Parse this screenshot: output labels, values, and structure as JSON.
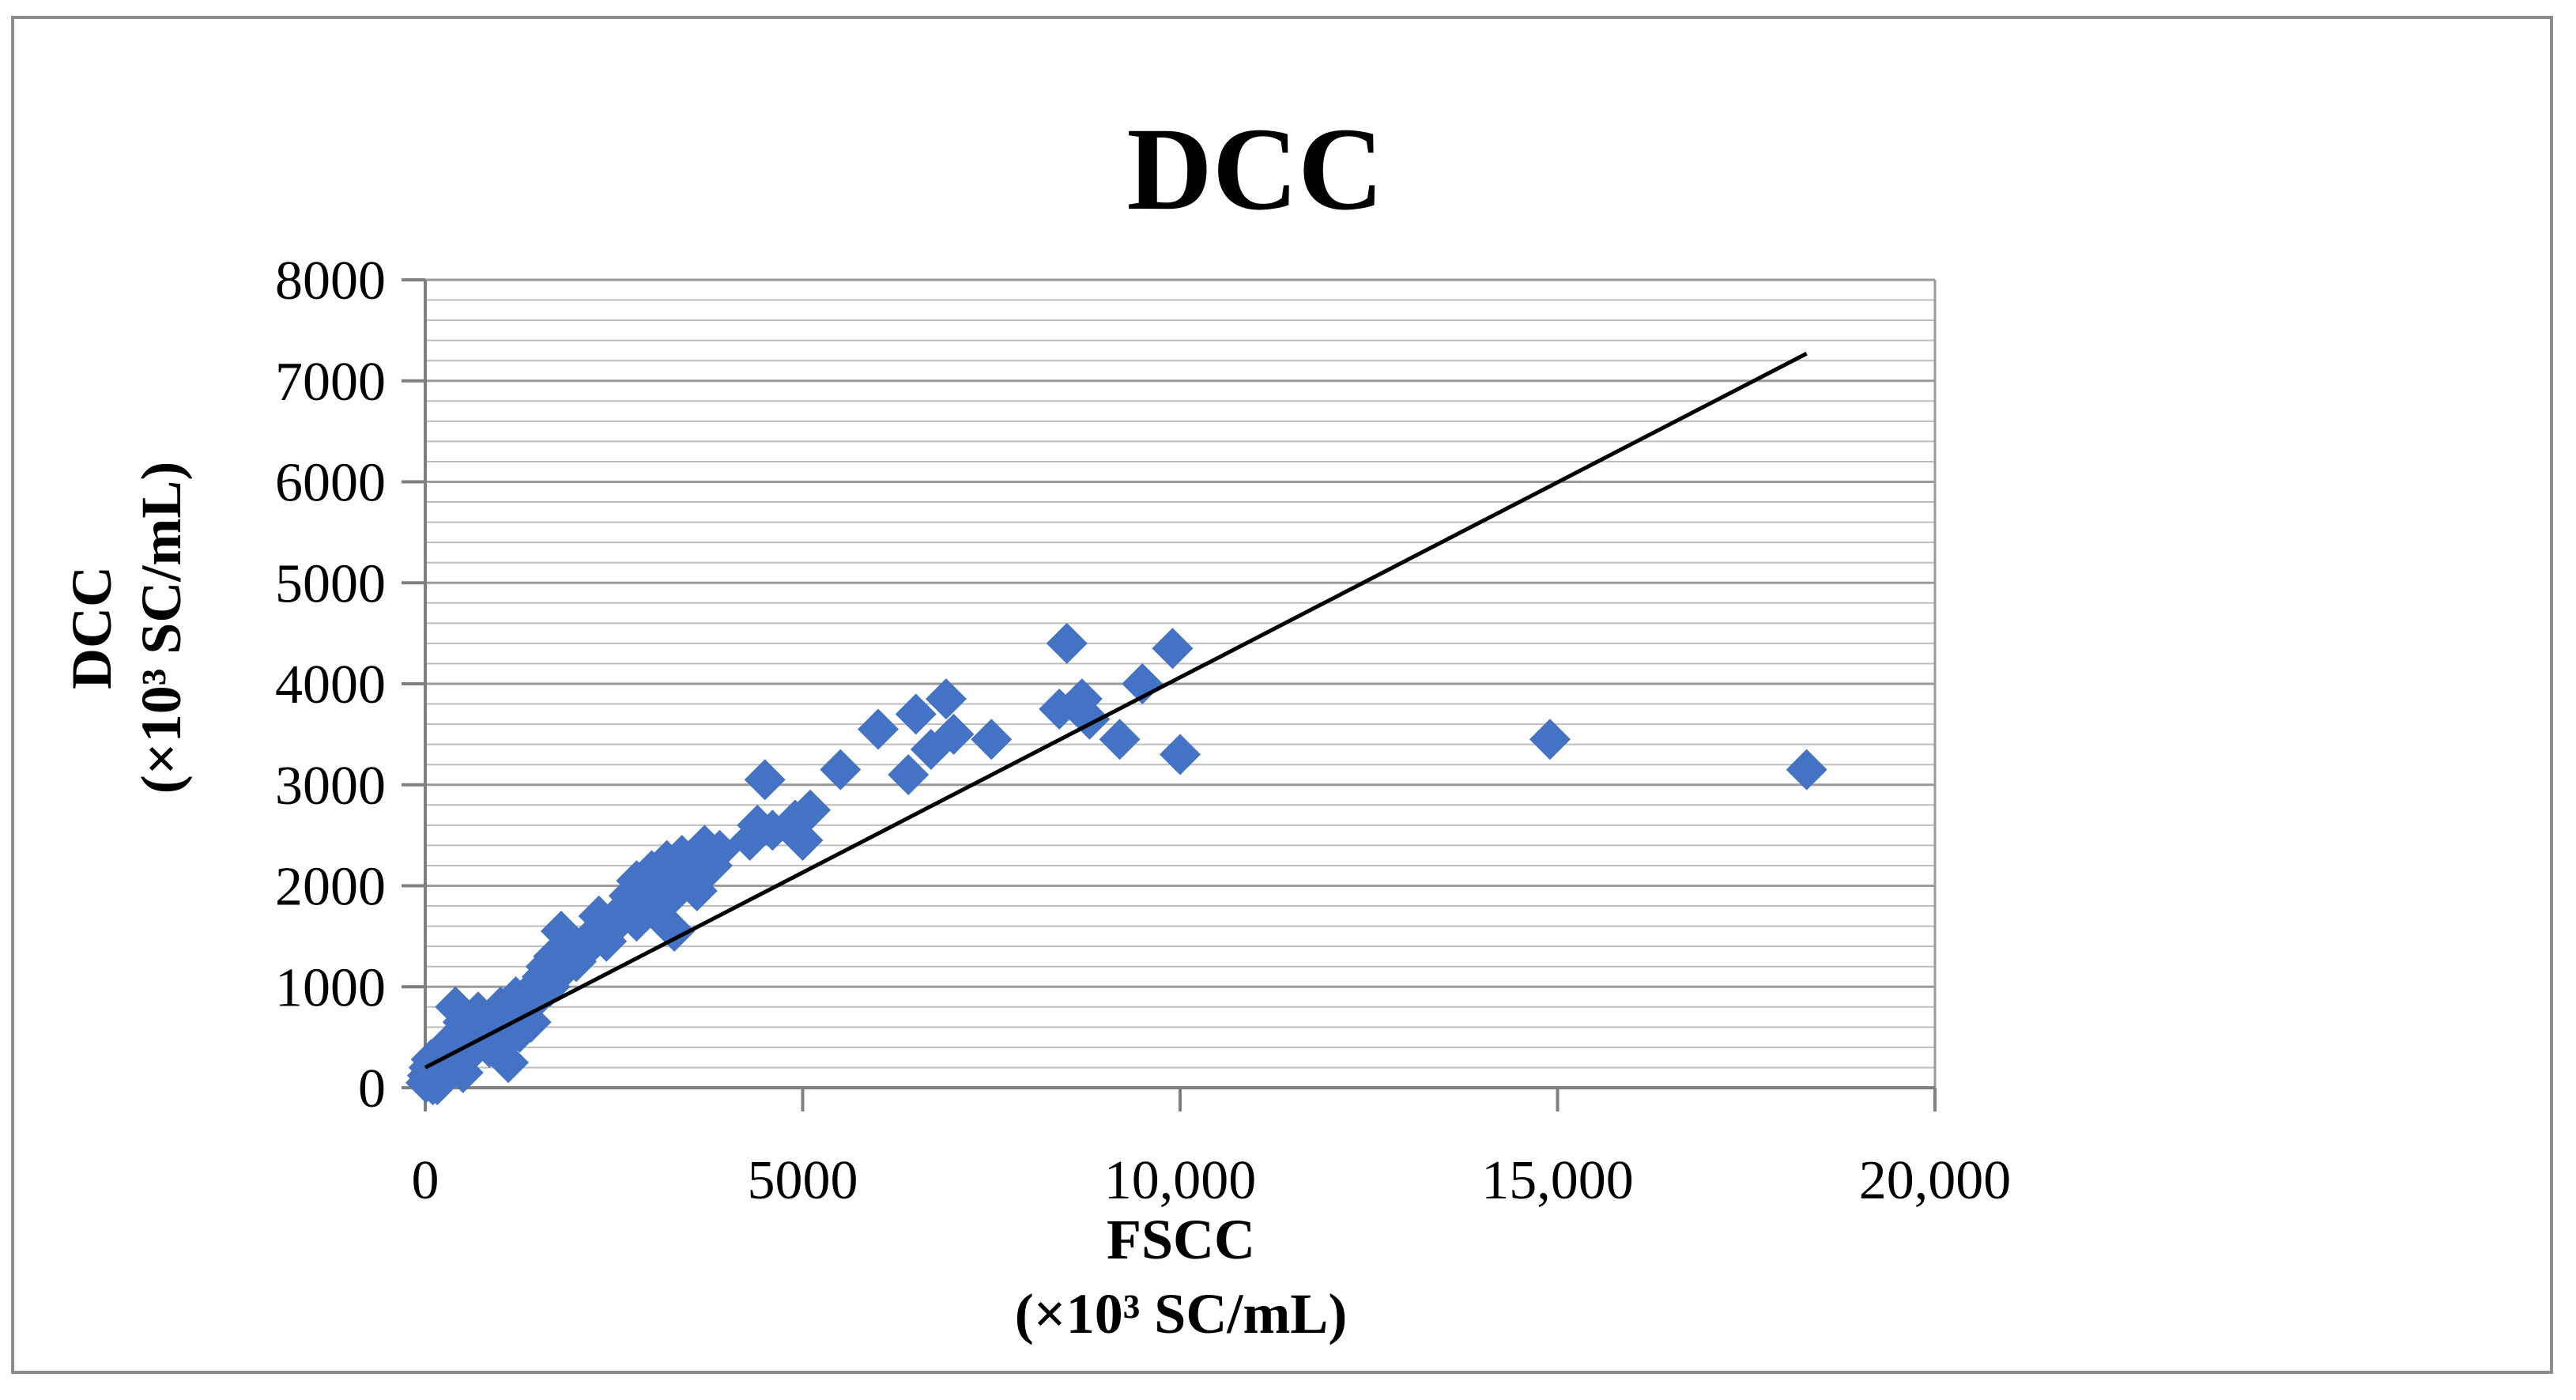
{
  "chart_data": {
    "type": "scatter",
    "title": "DCC",
    "xlabel": "FSCC",
    "xlabel_unit": "(×10³ SC/mL)",
    "ylabel": "DCC",
    "ylabel_unit": "(×10³ SC/mL)",
    "xlim": [
      0,
      20000
    ],
    "ylim": [
      0,
      8000
    ],
    "x_ticks": [
      0,
      5000,
      10000,
      15000,
      20000
    ],
    "x_tick_labels": [
      "0",
      "5000",
      "10,000",
      "15,000",
      "20,000"
    ],
    "y_ticks": [
      0,
      1000,
      2000,
      3000,
      4000,
      5000,
      6000,
      7000,
      8000
    ],
    "y_tick_labels": [
      "0",
      "1000",
      "2000",
      "3000",
      "4000",
      "5000",
      "6000",
      "7000",
      "8000"
    ],
    "y_minor_grid_step": 200,
    "grid": "horizontal",
    "marker": "diamond",
    "marker_color": "#4472c4",
    "trendline": {
      "x": [
        0,
        18300
      ],
      "y": [
        200,
        7270
      ],
      "color": "#000000"
    },
    "series": [
      {
        "name": "DCC",
        "points": [
          [
            10,
            50
          ],
          [
            30,
            120
          ],
          [
            50,
            200
          ],
          [
            60,
            80
          ],
          [
            80,
            280
          ],
          [
            100,
            30
          ],
          [
            120,
            150
          ],
          [
            150,
            250
          ],
          [
            160,
            30
          ],
          [
            200,
            350
          ],
          [
            220,
            120
          ],
          [
            250,
            200
          ],
          [
            300,
            300
          ],
          [
            320,
            450
          ],
          [
            350,
            250
          ],
          [
            400,
            500
          ],
          [
            400,
            800
          ],
          [
            450,
            400
          ],
          [
            500,
            650
          ],
          [
            500,
            150
          ],
          [
            550,
            450
          ],
          [
            600,
            350
          ],
          [
            650,
            550
          ],
          [
            700,
            750
          ],
          [
            750,
            500
          ],
          [
            800,
            650
          ],
          [
            850,
            400
          ],
          [
            900,
            700
          ],
          [
            950,
            550
          ],
          [
            1000,
            800
          ],
          [
            1050,
            450
          ],
          [
            1100,
            250
          ],
          [
            1100,
            750
          ],
          [
            1200,
            900
          ],
          [
            1250,
            550
          ],
          [
            1300,
            700
          ],
          [
            1350,
            850
          ],
          [
            1400,
            650
          ],
          [
            1450,
            1000
          ],
          [
            1500,
            900
          ],
          [
            1550,
            1100
          ],
          [
            1600,
            1200
          ],
          [
            1650,
            1000
          ],
          [
            1700,
            1300
          ],
          [
            1800,
            1550
          ],
          [
            1800,
            1150
          ],
          [
            1900,
            1400
          ],
          [
            2000,
            1250
          ],
          [
            2100,
            1350
          ],
          [
            2200,
            1500
          ],
          [
            2300,
            1700
          ],
          [
            2400,
            1450
          ],
          [
            2500,
            1600
          ],
          [
            2600,
            1750
          ],
          [
            2700,
            1900
          ],
          [
            2800,
            1650
          ],
          [
            2800,
            2050
          ],
          [
            2900,
            1800
          ],
          [
            3000,
            2150
          ],
          [
            3000,
            1950
          ],
          [
            3100,
            1700
          ],
          [
            3200,
            2250
          ],
          [
            3200,
            1850
          ],
          [
            3300,
            2000
          ],
          [
            3300,
            1550
          ],
          [
            3400,
            2300
          ],
          [
            3500,
            2100
          ],
          [
            3600,
            1950
          ],
          [
            3700,
            2400
          ],
          [
            3800,
            2200
          ],
          [
            3900,
            2350
          ],
          [
            4300,
            2450
          ],
          [
            4400,
            2600
          ],
          [
            4500,
            3050
          ],
          [
            4600,
            2550
          ],
          [
            4900,
            2650
          ],
          [
            5000,
            2450
          ],
          [
            5100,
            2750
          ],
          [
            5500,
            3150
          ],
          [
            6000,
            3550
          ],
          [
            6400,
            3100
          ],
          [
            6500,
            3700
          ],
          [
            6700,
            3350
          ],
          [
            6900,
            3850
          ],
          [
            7000,
            3500
          ],
          [
            7500,
            3450
          ],
          [
            8400,
            3750
          ],
          [
            8500,
            4400
          ],
          [
            8700,
            3850
          ],
          [
            8800,
            3650
          ],
          [
            9200,
            3450
          ],
          [
            9500,
            4000
          ],
          [
            9900,
            4350
          ],
          [
            10000,
            3300
          ],
          [
            14900,
            3450
          ],
          [
            18300,
            3150
          ]
        ]
      }
    ]
  }
}
